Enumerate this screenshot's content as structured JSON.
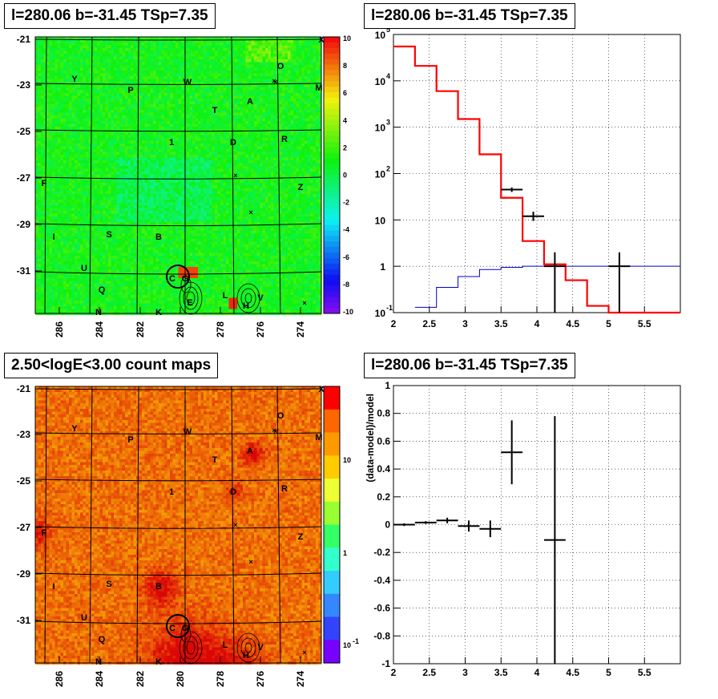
{
  "titles": {
    "top_left": "l=280.06 b=-31.45 TSp=7.35",
    "top_right": "l=280.06 b=-31.45 TSp=7.35",
    "bottom_left": "2.50<logE<3.00 count maps",
    "bottom_right": "l=280.06 b=-31.45 TSp=7.35"
  },
  "colors": {
    "model_line": "#ff0000",
    "background_line": "#0000cc",
    "data": "#000000",
    "grid": "#000000"
  },
  "chart_data": [
    {
      "id": "ts-map",
      "type": "heatmap",
      "x_ticks": [
        "286",
        "284",
        "282",
        "280",
        "278",
        "276",
        "274"
      ],
      "y_ticks": [
        "-21",
        "-23",
        "-25",
        "-27",
        "-29",
        "-31"
      ],
      "colorbar_ticks": [
        "10",
        "8",
        "6",
        "4",
        "2",
        "0",
        "-2",
        "-4",
        "-6",
        "-8",
        "-10"
      ],
      "zlim": [
        -10,
        10
      ],
      "source_labels": [
        "X",
        "O",
        "Y",
        "W",
        "M",
        "P",
        "T",
        "A",
        "1",
        "D",
        "R",
        "F",
        "Z",
        "I",
        "S",
        "B",
        "U",
        "C",
        "G",
        "Q",
        "L",
        "H",
        "V",
        "N",
        "K",
        "E"
      ]
    },
    {
      "id": "spectrum",
      "type": "line",
      "xlim": [
        2,
        6
      ],
      "ylog": true,
      "x_ticks": [
        "2",
        "2.5",
        "3",
        "3.5",
        "4",
        "4.5",
        "5",
        "5.5"
      ],
      "y_ticks": [
        "10",
        "1",
        "10"
      ],
      "y_tick_sup": [
        "-1",
        "",
        "",
        "2",
        "3",
        "4",
        "5"
      ],
      "model_step": {
        "edges": [
          2.0,
          2.3,
          2.6,
          2.9,
          3.2,
          3.5,
          3.8,
          4.1,
          4.4,
          4.7,
          5.0,
          5.3,
          6.0
        ],
        "values": [
          55000,
          21000,
          6000,
          1500,
          260,
          30,
          3.5,
          1.1,
          0.5,
          0.14,
          0.1,
          0.1
        ]
      },
      "background_step": {
        "edges": [
          2.3,
          2.6,
          2.9,
          3.2,
          3.5,
          3.8,
          4.1,
          4.4,
          4.7,
          5.0,
          5.3,
          6.0
        ],
        "values": [
          0.13,
          0.35,
          0.6,
          0.85,
          0.95,
          1.0,
          1.0,
          1.0,
          1.0,
          1.0,
          1.0
        ]
      },
      "data_points": [
        {
          "x": 3.65,
          "y": 45,
          "xerr": 0.15,
          "ylo": 40,
          "yhi": 50
        },
        {
          "x": 3.95,
          "y": 12,
          "xerr": 0.15,
          "ylo": 9.5,
          "yhi": 15
        },
        {
          "x": 4.25,
          "y": 1,
          "xerr": 0.15,
          "ylo": 0.1,
          "yhi": 2
        },
        {
          "x": 5.15,
          "y": 1,
          "xerr": 0.15,
          "ylo": 0.1,
          "yhi": 2
        }
      ]
    },
    {
      "id": "count-map",
      "type": "heatmap",
      "x_ticks": [
        "286",
        "284",
        "282",
        "280",
        "278",
        "276",
        "274"
      ],
      "y_ticks": [
        "-21",
        "-23",
        "-25",
        "-27",
        "-29",
        "-31"
      ],
      "colorbar_ticks": [
        "10",
        "1",
        "10"
      ],
      "colorbar_sup": [
        "",
        "",
        "-1"
      ],
      "zlog": true,
      "source_labels": [
        "X",
        "O",
        "Y",
        "W",
        "M",
        "P",
        "T",
        "A",
        "1",
        "D",
        "R",
        "F",
        "Z",
        "I",
        "S",
        "B",
        "U",
        "C",
        "G",
        "Q",
        "L",
        "H",
        "V",
        "N",
        "K"
      ]
    },
    {
      "id": "residuals",
      "type": "scatter",
      "ylabel": "(data-model)/model",
      "xlim": [
        2,
        6
      ],
      "ylim": [
        -1,
        1
      ],
      "x_ticks": [
        "2",
        "2.5",
        "3",
        "3.5",
        "4",
        "4.5",
        "5",
        "5.5"
      ],
      "y_ticks": [
        "1",
        "0.8",
        "0.6",
        "0.4",
        "0.2",
        "0",
        "-0.2",
        "-0.4",
        "-0.6",
        "-0.8",
        "-1"
      ],
      "points": [
        {
          "x": 2.15,
          "y": 0.0,
          "xerr": 0.15,
          "yerr": 0.01
        },
        {
          "x": 2.45,
          "y": 0.015,
          "xerr": 0.15,
          "yerr": 0.01
        },
        {
          "x": 2.75,
          "y": 0.03,
          "xerr": 0.15,
          "yerr": 0.02
        },
        {
          "x": 3.05,
          "y": -0.01,
          "xerr": 0.15,
          "yerr": 0.04
        },
        {
          "x": 3.35,
          "y": -0.03,
          "xerr": 0.15,
          "yerr": 0.06
        },
        {
          "x": 3.65,
          "y": 0.52,
          "xerr": 0.15,
          "yerr": 0.23
        },
        {
          "x": 4.25,
          "y": -0.11,
          "xerr": 0.15,
          "yerr": 0.89
        }
      ]
    }
  ]
}
